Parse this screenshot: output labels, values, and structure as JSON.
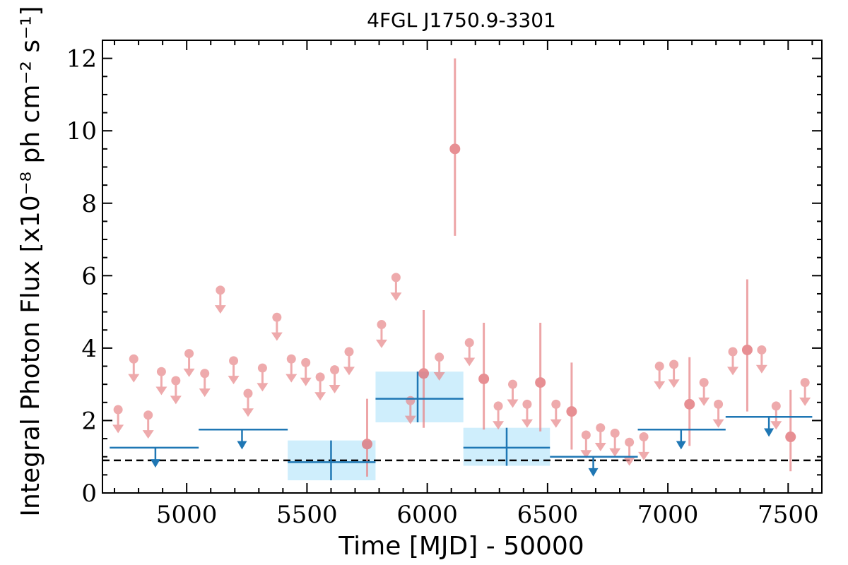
{
  "chart_data": {
    "type": "scatter",
    "title": "4FGL J1750.9-3301",
    "xlabel": "Time [MJD] - 50000",
    "ylabel": "Integral Photon Flux [x10⁻⁸ ph cm⁻² s⁻¹]",
    "xlim": [
      4650,
      7640
    ],
    "ylim": [
      0,
      12.5
    ],
    "x_ticks": [
      5000,
      5500,
      6000,
      6500,
      7000,
      7500
    ],
    "y_ticks": [
      0,
      2,
      4,
      6,
      8,
      10,
      12
    ],
    "grid": false,
    "legend": "none",
    "reference_line": {
      "y": 0.9,
      "style": "dashed",
      "color": "#000000"
    },
    "series": [
      {
        "style": "red-points",
        "color": "#e8878a",
        "detections": [
          {
            "x": 5750,
            "y": 1.35,
            "ylo": 0.45,
            "yhi": 2.6
          },
          {
            "x": 5985,
            "y": 3.3,
            "ylo": 1.8,
            "yhi": 5.05
          },
          {
            "x": 6115,
            "y": 9.5,
            "ylo": 7.1,
            "yhi": 12.0
          },
          {
            "x": 6235,
            "y": 3.15,
            "ylo": 1.75,
            "yhi": 4.7
          },
          {
            "x": 6470,
            "y": 3.05,
            "ylo": 1.7,
            "yhi": 4.7
          },
          {
            "x": 6600,
            "y": 2.25,
            "ylo": 1.2,
            "yhi": 3.6
          },
          {
            "x": 7090,
            "y": 2.45,
            "ylo": 1.3,
            "yhi": 3.75
          },
          {
            "x": 7330,
            "y": 3.95,
            "ylo": 2.25,
            "yhi": 5.9
          },
          {
            "x": 7510,
            "y": 1.55,
            "ylo": 0.6,
            "yhi": 2.85
          }
        ],
        "upper_limits": [
          {
            "x": 4715,
            "y": 2.3
          },
          {
            "x": 4780,
            "y": 3.7
          },
          {
            "x": 4840,
            "y": 2.15
          },
          {
            "x": 4895,
            "y": 3.35
          },
          {
            "x": 4955,
            "y": 3.1
          },
          {
            "x": 5010,
            "y": 3.85
          },
          {
            "x": 5075,
            "y": 3.3
          },
          {
            "x": 5140,
            "y": 5.6
          },
          {
            "x": 5195,
            "y": 3.65
          },
          {
            "x": 5255,
            "y": 2.75
          },
          {
            "x": 5315,
            "y": 3.45
          },
          {
            "x": 5375,
            "y": 4.85
          },
          {
            "x": 5435,
            "y": 3.7
          },
          {
            "x": 5495,
            "y": 3.6
          },
          {
            "x": 5555,
            "y": 3.2
          },
          {
            "x": 5615,
            "y": 3.4
          },
          {
            "x": 5675,
            "y": 3.9
          },
          {
            "x": 5810,
            "y": 4.65
          },
          {
            "x": 5870,
            "y": 5.95
          },
          {
            "x": 5930,
            "y": 2.55
          },
          {
            "x": 6050,
            "y": 3.75
          },
          {
            "x": 6175,
            "y": 4.15
          },
          {
            "x": 6295,
            "y": 2.4
          },
          {
            "x": 6355,
            "y": 3.0
          },
          {
            "x": 6415,
            "y": 2.45
          },
          {
            "x": 6535,
            "y": 2.45
          },
          {
            "x": 6660,
            "y": 1.6
          },
          {
            "x": 6720,
            "y": 1.8
          },
          {
            "x": 6780,
            "y": 1.65
          },
          {
            "x": 6840,
            "y": 1.4
          },
          {
            "x": 6900,
            "y": 1.55
          },
          {
            "x": 6965,
            "y": 3.5
          },
          {
            "x": 7025,
            "y": 3.55
          },
          {
            "x": 7150,
            "y": 3.05
          },
          {
            "x": 7210,
            "y": 2.45
          },
          {
            "x": 7270,
            "y": 3.9
          },
          {
            "x": 7390,
            "y": 3.95
          },
          {
            "x": 7450,
            "y": 2.4
          },
          {
            "x": 7570,
            "y": 3.05
          }
        ]
      },
      {
        "style": "blue-bins",
        "color": "#1f77b4",
        "band_color": "#cfeefc",
        "detections": [
          {
            "x": 5600,
            "xlo": 5420,
            "xhi": 5785,
            "y": 0.85,
            "ylo": 0.35,
            "yhi": 1.45
          },
          {
            "x": 5960,
            "xlo": 5785,
            "xhi": 6150,
            "y": 2.6,
            "ylo": 1.95,
            "yhi": 3.35
          },
          {
            "x": 6330,
            "xlo": 6150,
            "xhi": 6510,
            "y": 1.25,
            "ylo": 0.75,
            "yhi": 1.8
          }
        ],
        "upper_limits": [
          {
            "x": 4870,
            "xlo": 4680,
            "xhi": 5050,
            "y": 1.25
          },
          {
            "x": 5230,
            "xlo": 5050,
            "xhi": 5420,
            "y": 1.75
          },
          {
            "x": 6690,
            "xlo": 6510,
            "xhi": 6875,
            "y": 1.0
          },
          {
            "x": 7055,
            "xlo": 6875,
            "xhi": 7240,
            "y": 1.75
          },
          {
            "x": 7420,
            "xlo": 7240,
            "xhi": 7600,
            "y": 2.1
          }
        ]
      }
    ]
  }
}
